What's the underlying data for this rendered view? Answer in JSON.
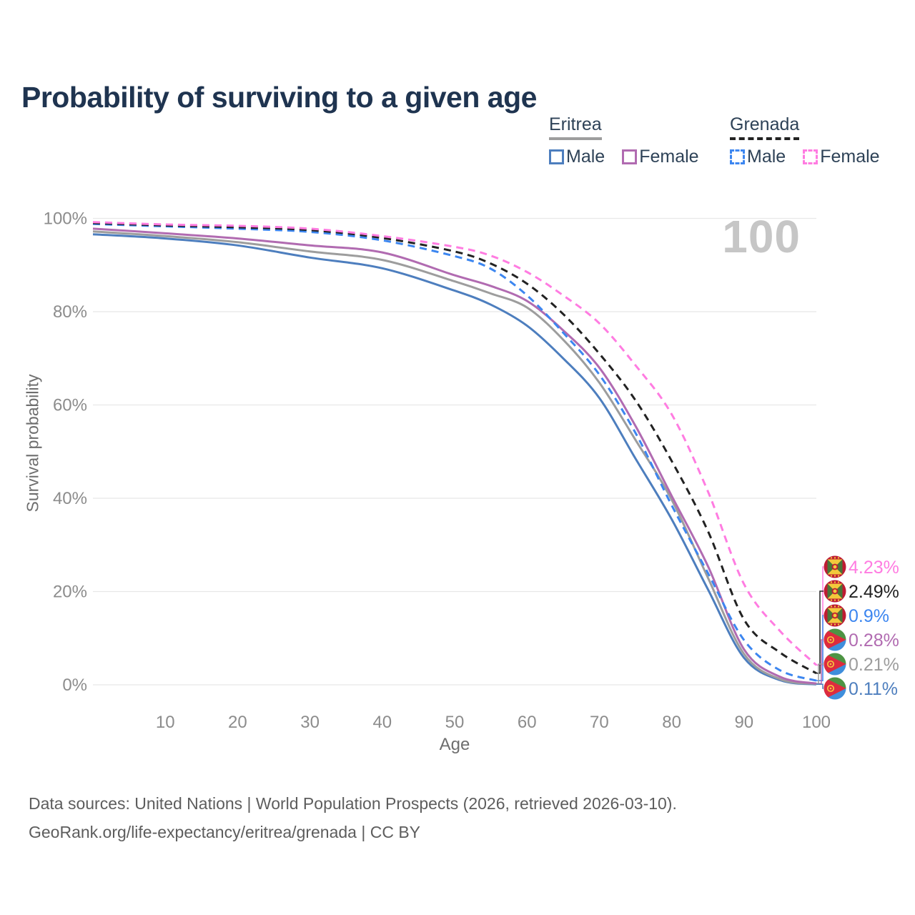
{
  "title": "Probability of surviving to a given age",
  "hover_age_label": "100",
  "legend": {
    "groups": [
      {
        "label": "Eritrea",
        "underline_color": "#9d9d9d",
        "underline_style": "solid",
        "items": [
          {
            "label": "Male",
            "color": "#4d7ebe",
            "dash": false
          },
          {
            "label": "Female",
            "color": "#b16bb1",
            "dash": false
          }
        ]
      },
      {
        "label": "Grenada",
        "underline_color": "#222222",
        "underline_style": "dashed",
        "items": [
          {
            "label": "Male",
            "color": "#3c86f0",
            "dash": true
          },
          {
            "label": "Female",
            "color": "#ff7ce1",
            "dash": true
          }
        ]
      }
    ]
  },
  "chart_data": {
    "type": "line",
    "title": "Probability of surviving to a given age",
    "xlabel": "Age",
    "ylabel": "Survival probability",
    "xlim": [
      0,
      100
    ],
    "ylim": [
      0,
      100
    ],
    "grid": "horizontal",
    "legend_position": "top-right",
    "x_ticks": [
      {
        "value": 10,
        "label": "10"
      },
      {
        "value": 20,
        "label": "20"
      },
      {
        "value": 30,
        "label": "30"
      },
      {
        "value": 40,
        "label": "40"
      },
      {
        "value": 50,
        "label": "50"
      },
      {
        "value": 60,
        "label": "60"
      },
      {
        "value": 70,
        "label": "70"
      },
      {
        "value": 80,
        "label": "80"
      },
      {
        "value": 90,
        "label": "90"
      },
      {
        "value": 100,
        "label": "100"
      }
    ],
    "y_ticks": [
      {
        "value": 0,
        "label": "0%"
      },
      {
        "value": 20,
        "label": "20%"
      },
      {
        "value": 40,
        "label": "40%"
      },
      {
        "value": 60,
        "label": "60%"
      },
      {
        "value": 80,
        "label": "80%"
      },
      {
        "value": 100,
        "label": "100%"
      }
    ],
    "x": [
      0,
      10,
      20,
      30,
      40,
      50,
      55,
      60,
      65,
      70,
      75,
      80,
      85,
      90,
      95,
      100
    ],
    "series": [
      {
        "id": "eritrea-male",
        "name": "Eritrea Male",
        "country": "Eritrea",
        "sex": "Male",
        "color": "#4d7ebe",
        "dash": false,
        "flag": "eritrea",
        "end_label": "0.11%",
        "values": [
          96.6,
          95.7,
          94.2,
          91.6,
          89.3,
          84.5,
          81.5,
          77.0,
          70.0,
          61.5,
          48.5,
          35.5,
          20.5,
          5.8,
          1.0,
          0.11
        ]
      },
      {
        "id": "eritrea",
        "name": "Eritrea",
        "country": "Eritrea",
        "sex": "Both",
        "color": "#9d9d9d",
        "dash": false,
        "flag": "eritrea",
        "end_label": "0.21%",
        "values": [
          97.2,
          96.2,
          94.9,
          92.9,
          91.1,
          86.5,
          83.9,
          80.9,
          74.0,
          64.8,
          52.5,
          39.7,
          23.0,
          6.6,
          1.2,
          0.21
        ]
      },
      {
        "id": "eritrea-female",
        "name": "Eritrea Female",
        "country": "Eritrea",
        "sex": "Female",
        "color": "#b16bb1",
        "dash": false,
        "flag": "eritrea",
        "end_label": "0.28%",
        "values": [
          97.8,
          96.8,
          95.7,
          94.2,
          92.7,
          87.8,
          85.5,
          82.3,
          76.0,
          68.0,
          55.5,
          40.5,
          25.5,
          7.6,
          1.7,
          0.28
        ]
      },
      {
        "id": "grenada-male",
        "name": "Grenada Male",
        "country": "Grenada",
        "sex": "Male",
        "color": "#3c86f0",
        "dash": true,
        "flag": "grenada",
        "end_label": "0.9%",
        "values": [
          98.8,
          98.3,
          97.8,
          97.1,
          95.3,
          91.9,
          89.2,
          83.5,
          75.5,
          66.5,
          54.0,
          38.5,
          24.0,
          9.6,
          3.1,
          0.9
        ]
      },
      {
        "id": "grenada",
        "name": "Grenada",
        "country": "Grenada",
        "sex": "Both",
        "color": "#222222",
        "dash": true,
        "flag": "grenada",
        "end_label": "2.49%",
        "values": [
          99.0,
          98.5,
          98.1,
          97.5,
          95.8,
          92.9,
          90.3,
          86.0,
          79.5,
          71.0,
          61.0,
          48.0,
          33.0,
          14.0,
          6.9,
          2.49
        ]
      },
      {
        "id": "grenada-female",
        "name": "Grenada Female",
        "country": "Grenada",
        "sex": "Female",
        "color": "#ff7ce1",
        "dash": true,
        "flag": "grenada",
        "end_label": "4.23%",
        "values": [
          99.2,
          98.7,
          98.4,
          97.8,
          96.2,
          93.9,
          92.0,
          88.5,
          83.5,
          77.5,
          68.5,
          58.0,
          41.5,
          21.6,
          11.5,
          4.23
        ]
      }
    ]
  },
  "footer": {
    "line1": "Data sources: United Nations | World Population Prospects (2026, retrieved 2026-03-10).",
    "line2": "GeoRank.org/life-expectancy/eritrea/grenada | CC BY"
  }
}
